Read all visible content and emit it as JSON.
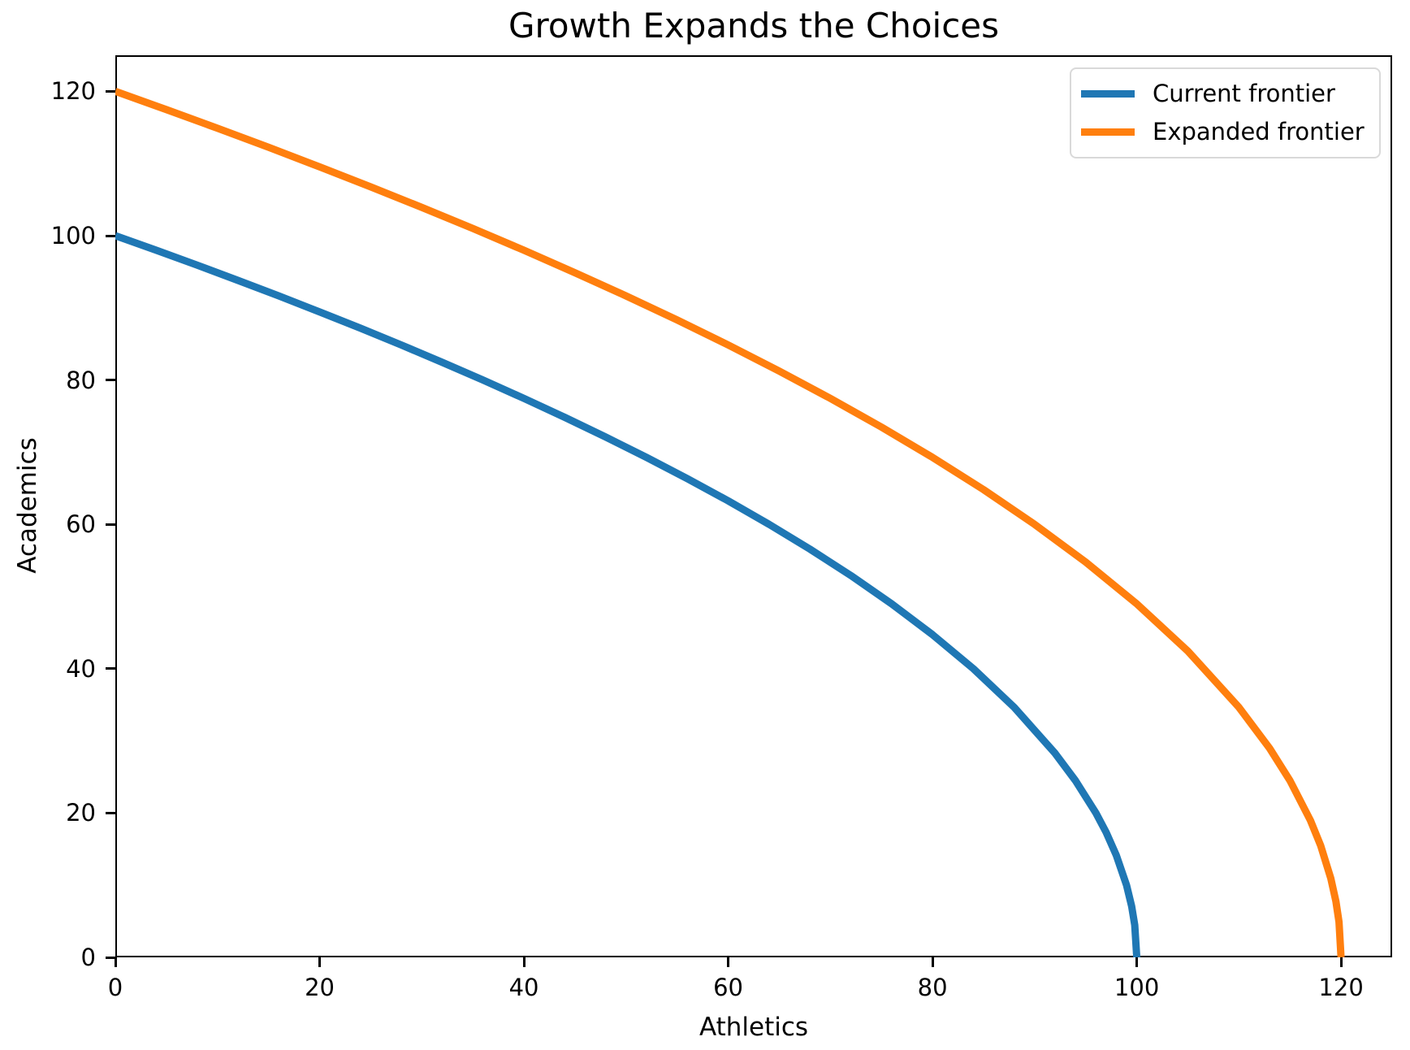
{
  "figure": {
    "background": "#ffffff",
    "text_color": "#000000",
    "axis_color": "#000000"
  },
  "chart_data": {
    "type": "line",
    "title": "Growth Expands the Choices",
    "xlabel": "Athletics",
    "ylabel": "Academics",
    "xlim": [
      0,
      125
    ],
    "ylim": [
      0,
      125
    ],
    "xticks": [
      0,
      20,
      40,
      60,
      80,
      100,
      120
    ],
    "yticks": [
      0,
      20,
      40,
      60,
      80,
      100,
      120
    ],
    "grid": false,
    "legend": {
      "position": "upper right",
      "entries": [
        "Current frontier",
        "Expanded frontier"
      ]
    },
    "series": [
      {
        "name": "Current frontier",
        "color": "#1f77b4",
        "line_width": 9,
        "x": [
          0,
          4,
          8,
          12,
          16,
          20,
          24,
          28,
          32,
          36,
          40,
          44,
          48,
          52,
          56,
          60,
          64,
          68,
          72,
          76,
          80,
          84,
          88,
          92,
          94,
          96,
          97,
          98,
          99,
          99.5,
          99.8,
          100
        ],
        "y": [
          100,
          97.98,
          95.92,
          93.81,
          91.65,
          89.44,
          87.18,
          84.85,
          82.46,
          80,
          77.46,
          74.83,
          72.11,
          69.28,
          66.33,
          63.25,
          60,
          56.57,
          52.92,
          48.99,
          44.72,
          40,
          34.64,
          28.28,
          24.49,
          20,
          17.32,
          14.14,
          10,
          7.07,
          4.47,
          0
        ]
      },
      {
        "name": "Expanded frontier",
        "color": "#ff7f0e",
        "line_width": 9,
        "x": [
          0,
          5,
          10,
          15,
          20,
          25,
          30,
          35,
          40,
          45,
          50,
          55,
          60,
          65,
          70,
          75,
          80,
          85,
          90,
          95,
          100,
          105,
          110,
          113,
          115,
          117,
          118,
          119,
          119.5,
          119.8,
          120
        ],
        "y": [
          120,
          117.47,
          114.89,
          112.25,
          109.54,
          106.77,
          103.92,
          101,
          97.98,
          94.87,
          91.65,
          88.32,
          84.85,
          81.24,
          77.46,
          73.48,
          69.28,
          64.81,
          60,
          54.77,
          48.99,
          42.43,
          34.64,
          28.98,
          24.49,
          18.97,
          15.49,
          10.95,
          7.75,
          4.9,
          0
        ]
      }
    ]
  }
}
